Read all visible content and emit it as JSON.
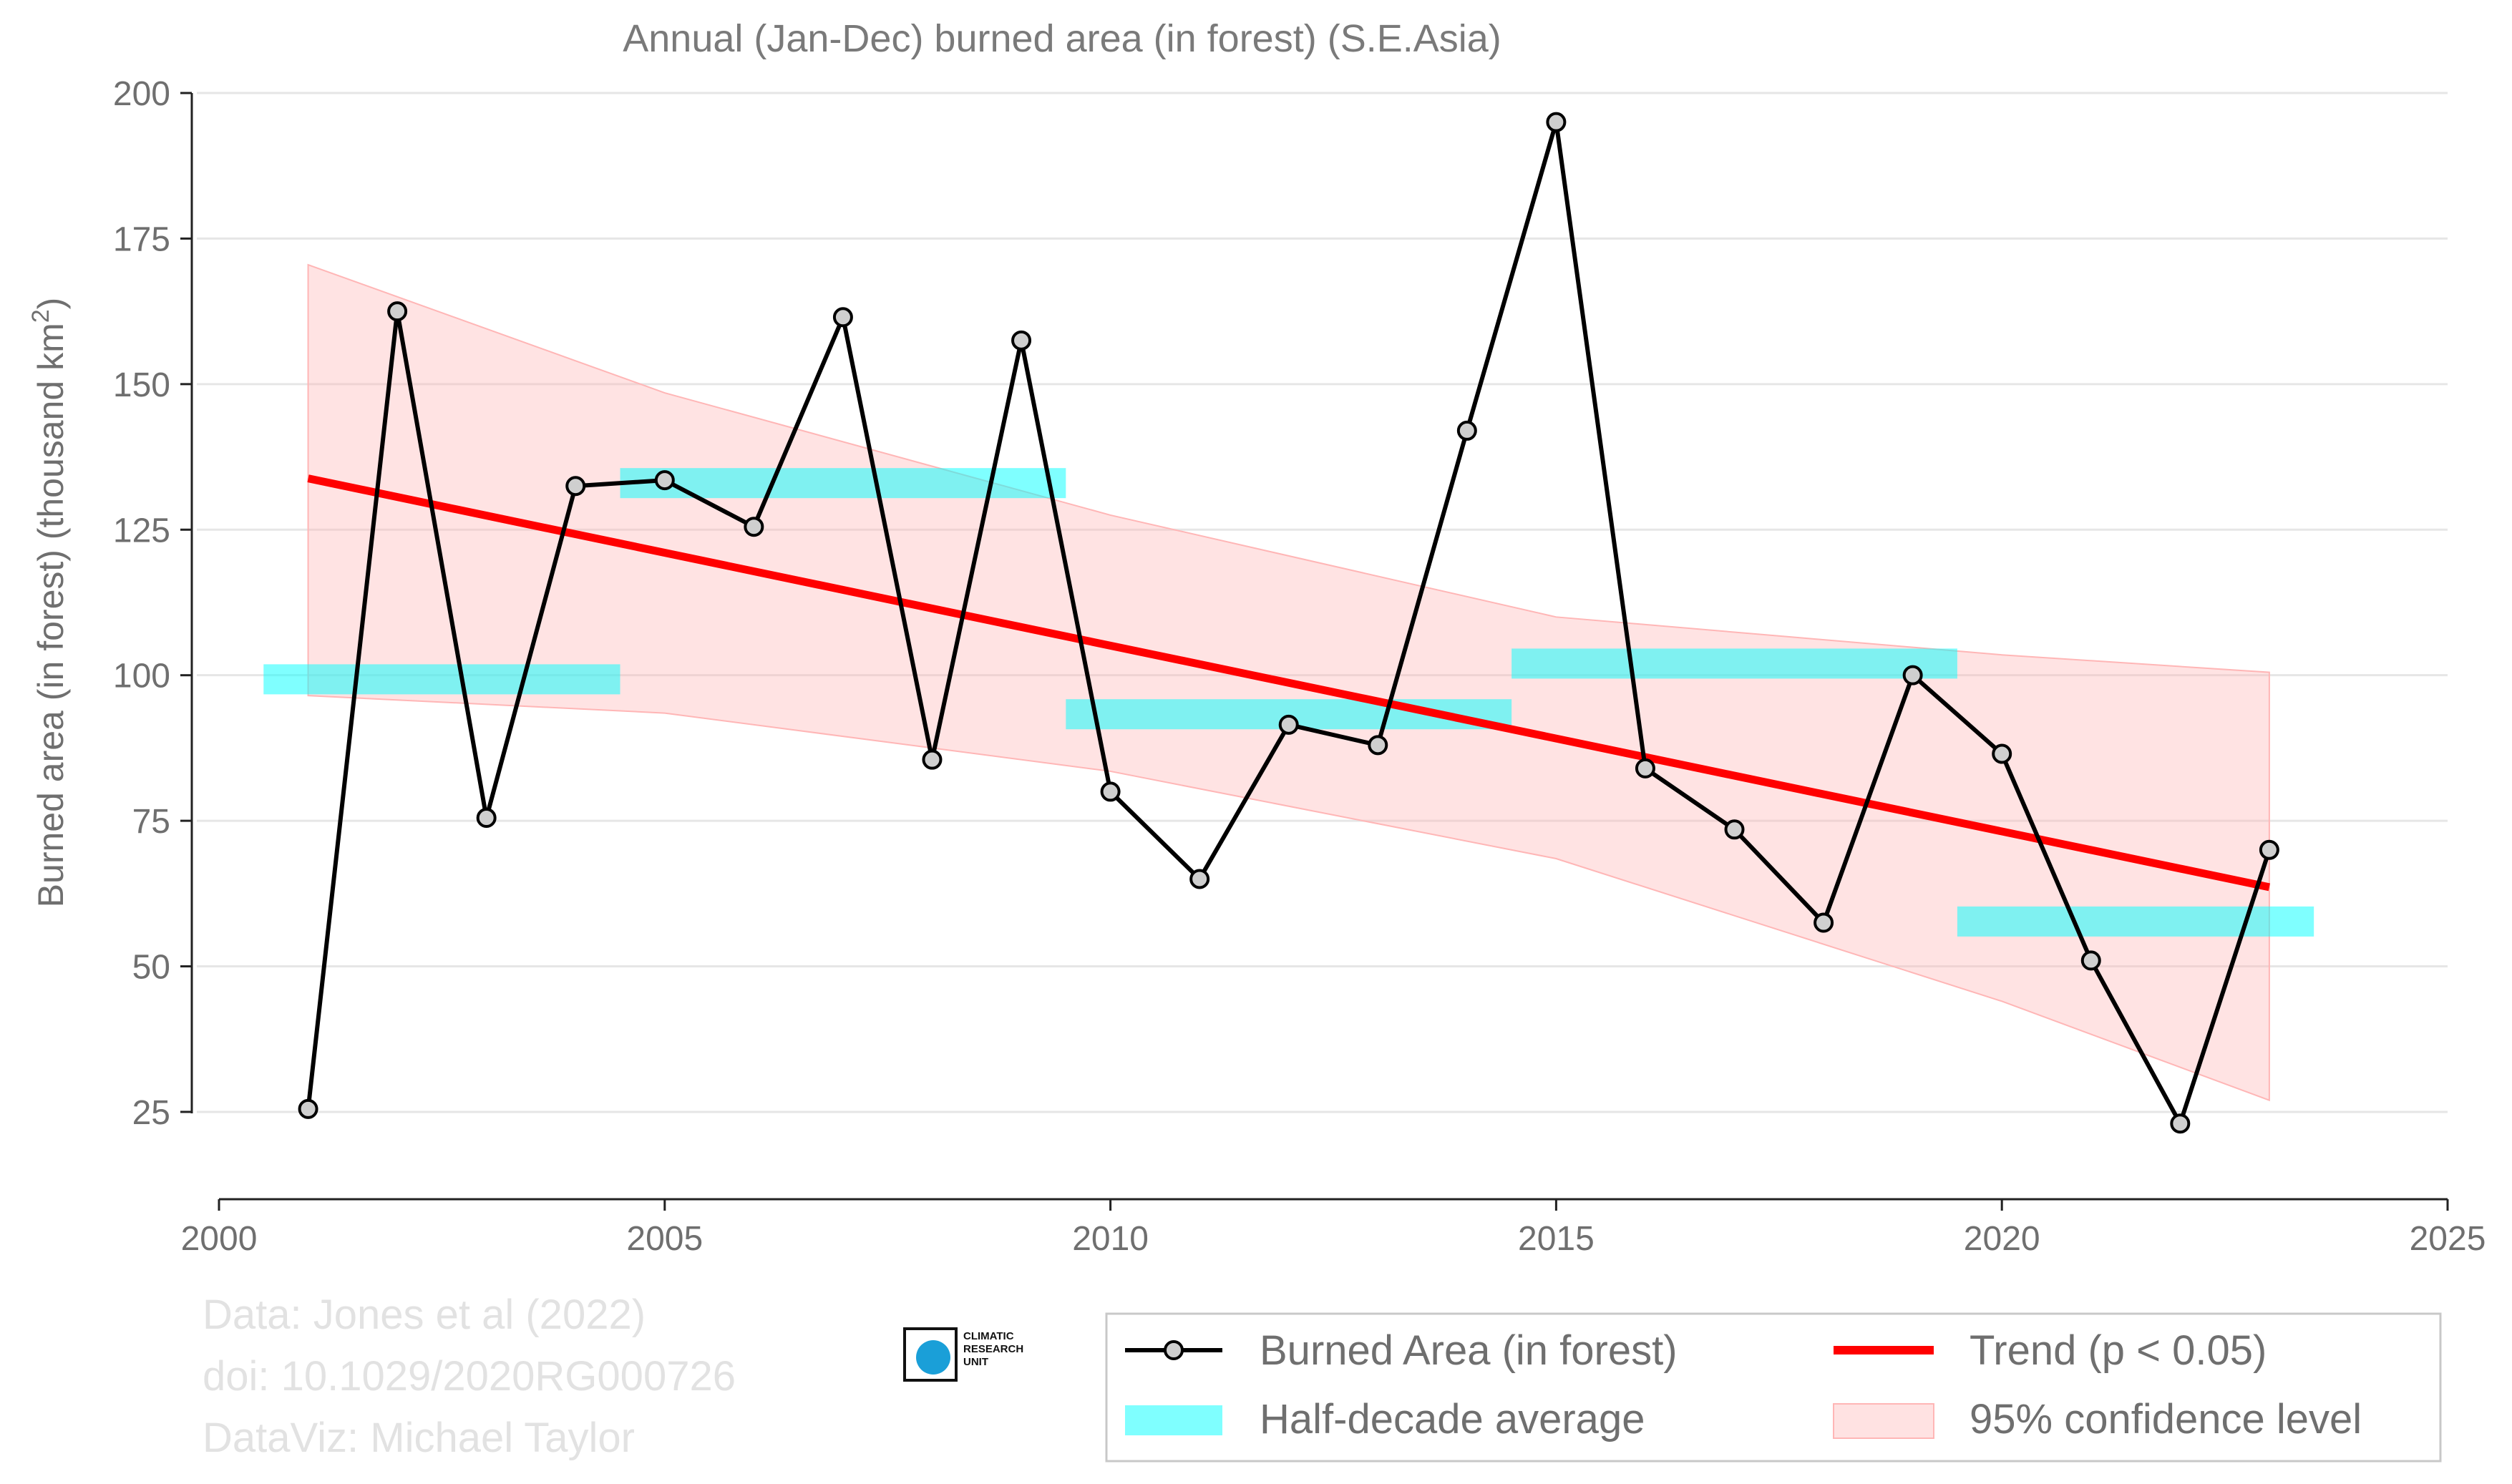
{
  "chart_data": {
    "type": "line",
    "title": "Annual (Jan-Dec) burned area (in forest) (S.E.Asia)",
    "xlabel": "",
    "ylabel": "Burned area (in forest) (thousand km",
    "ylabel_superscript": "2",
    "ylabel_suffix": ")",
    "xlim": [
      2000,
      2025
    ],
    "ylim": [
      10,
      200
    ],
    "x_ticks": [
      2000,
      2005,
      2010,
      2015,
      2020,
      2025
    ],
    "y_ticks": [
      25,
      50,
      75,
      100,
      125,
      150,
      175,
      200
    ],
    "grid": "horizontal",
    "legend_position": "bottom-right",
    "series": [
      {
        "name": "Burned Area (in forest)",
        "kind": "line-markers",
        "color": "#000000",
        "x": [
          2001,
          2002,
          2003,
          2004,
          2005,
          2006,
          2007,
          2008,
          2009,
          2010,
          2011,
          2012,
          2013,
          2014,
          2015,
          2016,
          2017,
          2018,
          2019,
          2020,
          2021,
          2022,
          2023
        ],
        "y": [
          25.5,
          162.5,
          75.5,
          132.5,
          133.5,
          125.5,
          161.5,
          85.5,
          157.5,
          80,
          65,
          91.5,
          88,
          142,
          195,
          84,
          73.5,
          57.5,
          100,
          86.5,
          51,
          23,
          70
        ]
      },
      {
        "name": "Half-decade average",
        "kind": "bands",
        "color": "#00ffff",
        "segments": [
          {
            "x0": 2000.5,
            "x1": 2004.5,
            "y": 99.3
          },
          {
            "x0": 2004.5,
            "x1": 2009.5,
            "y": 133
          },
          {
            "x0": 2009.5,
            "x1": 2014.5,
            "y": 93.3
          },
          {
            "x0": 2014.5,
            "x1": 2019.5,
            "y": 102
          },
          {
            "x0": 2019.5,
            "x1": 2023.5,
            "y": 57.7
          }
        ]
      },
      {
        "name": "Trend (p < 0.05)",
        "kind": "line",
        "color": "#ff0000",
        "x": [
          2001,
          2023
        ],
        "y": [
          133.8,
          63.6
        ]
      },
      {
        "name": "95% confidence level",
        "kind": "area",
        "color": "#ffb6b6",
        "x": [
          2001,
          2005,
          2010,
          2015,
          2020,
          2023
        ],
        "upper": [
          170.5,
          148.5,
          127.5,
          110,
          103.5,
          100.5
        ],
        "lower": [
          96.5,
          93.5,
          83.5,
          68.5,
          44,
          27
        ]
      }
    ]
  },
  "credits": {
    "line1": "Data: Jones et al (2022)",
    "line2": "doi: 10.1029/2020RG000726",
    "line3": "DataViz: Michael Taylor"
  },
  "logo": {
    "text_line1": "CLIMATIC",
    "text_line2": "RESEARCH",
    "text_line3": "UNIT"
  }
}
